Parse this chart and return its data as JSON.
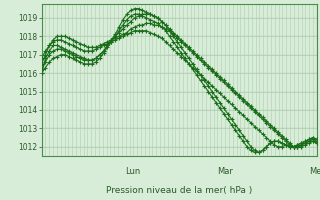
{
  "xlabel": "Pression niveau de la mer( hPa )",
  "bg_color": "#d8edd8",
  "grid_color_major": "#b0ccb0",
  "grid_color_minor": "#c4dcc4",
  "line_color": "#1a6e1a",
  "spine_color": "#4a8a4a",
  "text_color": "#2a5a2a",
  "ylim": [
    1011.5,
    1019.75
  ],
  "yticks": [
    1012,
    1013,
    1014,
    1015,
    1016,
    1017,
    1018,
    1019
  ],
  "day_labels": [
    "Lun",
    "Mar",
    "Mer"
  ],
  "day_positions": [
    0.333,
    0.667,
    1.0
  ],
  "n_points": 72,
  "lines": [
    [
      1016.0,
      1016.8,
      1017.2,
      1017.5,
      1017.5,
      1017.4,
      1017.3,
      1017.2,
      1017.1,
      1017.0,
      1016.9,
      1016.8,
      1016.7,
      1016.7,
      1016.8,
      1017.0,
      1017.2,
      1017.5,
      1017.8,
      1018.0,
      1018.2,
      1018.4,
      1018.6,
      1018.8,
      1019.0,
      1019.1,
      1019.2,
      1019.2,
      1019.2,
      1019.1,
      1019.0,
      1018.8,
      1018.6,
      1018.4,
      1018.2,
      1018.0,
      1017.8,
      1017.6,
      1017.4,
      1017.2,
      1017.0,
      1016.8,
      1016.6,
      1016.4,
      1016.2,
      1016.0,
      1015.8,
      1015.6,
      1015.4,
      1015.2,
      1015.0,
      1014.8,
      1014.6,
      1014.4,
      1014.2,
      1014.0,
      1013.8,
      1013.6,
      1013.4,
      1013.2,
      1013.0,
      1012.8,
      1012.6,
      1012.4,
      1012.2,
      1012.0,
      1012.0,
      1012.0,
      1012.1,
      1012.2,
      1012.3,
      1012.2
    ],
    [
      1016.5,
      1017.0,
      1017.5,
      1017.8,
      1018.0,
      1018.0,
      1018.0,
      1017.9,
      1017.8,
      1017.7,
      1017.6,
      1017.5,
      1017.4,
      1017.4,
      1017.4,
      1017.5,
      1017.6,
      1017.7,
      1017.8,
      1017.9,
      1018.0,
      1018.1,
      1018.2,
      1018.4,
      1018.5,
      1018.6,
      1018.6,
      1018.7,
      1018.7,
      1018.6,
      1018.6,
      1018.5,
      1018.4,
      1018.3,
      1018.1,
      1017.9,
      1017.7,
      1017.5,
      1017.3,
      1017.1,
      1016.9,
      1016.7,
      1016.5,
      1016.3,
      1016.1,
      1015.9,
      1015.7,
      1015.5,
      1015.3,
      1015.1,
      1014.9,
      1014.7,
      1014.5,
      1014.3,
      1014.1,
      1013.9,
      1013.7,
      1013.5,
      1013.3,
      1013.1,
      1012.9,
      1012.7,
      1012.5,
      1012.3,
      1012.1,
      1012.0,
      1012.0,
      1012.1,
      1012.2,
      1012.3,
      1012.4,
      1012.3
    ],
    [
      1016.2,
      1016.6,
      1017.0,
      1017.2,
      1017.3,
      1017.3,
      1017.2,
      1017.1,
      1017.0,
      1016.9,
      1016.8,
      1016.7,
      1016.7,
      1016.7,
      1016.8,
      1017.0,
      1017.2,
      1017.5,
      1017.8,
      1018.1,
      1018.5,
      1018.9,
      1019.2,
      1019.4,
      1019.5,
      1019.5,
      1019.4,
      1019.3,
      1019.2,
      1019.1,
      1019.0,
      1018.8,
      1018.6,
      1018.3,
      1018.0,
      1017.7,
      1017.4,
      1017.1,
      1016.8,
      1016.5,
      1016.2,
      1015.9,
      1015.6,
      1015.3,
      1015.0,
      1014.7,
      1014.4,
      1014.1,
      1013.8,
      1013.5,
      1013.2,
      1012.9,
      1012.6,
      1012.3,
      1012.0,
      1011.8,
      1011.7,
      1011.8,
      1012.0,
      1012.2,
      1012.3,
      1012.3,
      1012.2,
      1012.1,
      1012.0,
      1012.0,
      1012.1,
      1012.2,
      1012.3,
      1012.4,
      1012.5,
      1012.4
    ],
    [
      1016.0,
      1016.3,
      1016.6,
      1016.8,
      1016.9,
      1017.0,
      1017.0,
      1016.9,
      1016.8,
      1016.7,
      1016.6,
      1016.5,
      1016.5,
      1016.5,
      1016.6,
      1016.8,
      1017.1,
      1017.4,
      1017.7,
      1018.0,
      1018.3,
      1018.6,
      1018.9,
      1019.1,
      1019.2,
      1019.2,
      1019.1,
      1019.0,
      1018.9,
      1018.8,
      1018.7,
      1018.5,
      1018.3,
      1018.0,
      1017.7,
      1017.4,
      1017.1,
      1016.8,
      1016.5,
      1016.2,
      1015.9,
      1015.6,
      1015.3,
      1015.0,
      1014.7,
      1014.4,
      1014.1,
      1013.8,
      1013.5,
      1013.2,
      1012.9,
      1012.6,
      1012.3,
      1012.0,
      1011.8,
      1011.7,
      1011.7,
      1011.8,
      1012.0,
      1012.2,
      1012.3,
      1012.3,
      1012.2,
      1012.1,
      1012.0,
      1012.0,
      1012.1,
      1012.2,
      1012.3,
      1012.4,
      1012.5,
      1012.4
    ],
    [
      1016.8,
      1017.2,
      1017.5,
      1017.7,
      1017.8,
      1017.8,
      1017.7,
      1017.6,
      1017.5,
      1017.4,
      1017.3,
      1017.2,
      1017.2,
      1017.2,
      1017.3,
      1017.4,
      1017.5,
      1017.6,
      1017.7,
      1017.8,
      1017.9,
      1018.0,
      1018.1,
      1018.2,
      1018.3,
      1018.3,
      1018.3,
      1018.3,
      1018.2,
      1018.1,
      1018.0,
      1017.9,
      1017.7,
      1017.5,
      1017.3,
      1017.1,
      1016.9,
      1016.7,
      1016.5,
      1016.3,
      1016.1,
      1015.9,
      1015.7,
      1015.5,
      1015.3,
      1015.1,
      1014.9,
      1014.7,
      1014.5,
      1014.3,
      1014.1,
      1013.9,
      1013.7,
      1013.5,
      1013.3,
      1013.1,
      1012.9,
      1012.7,
      1012.5,
      1012.3,
      1012.1,
      1012.0,
      1012.0,
      1012.1,
      1012.1,
      1012.0,
      1012.0,
      1012.1,
      1012.2,
      1012.3,
      1012.3,
      1012.2
    ]
  ]
}
